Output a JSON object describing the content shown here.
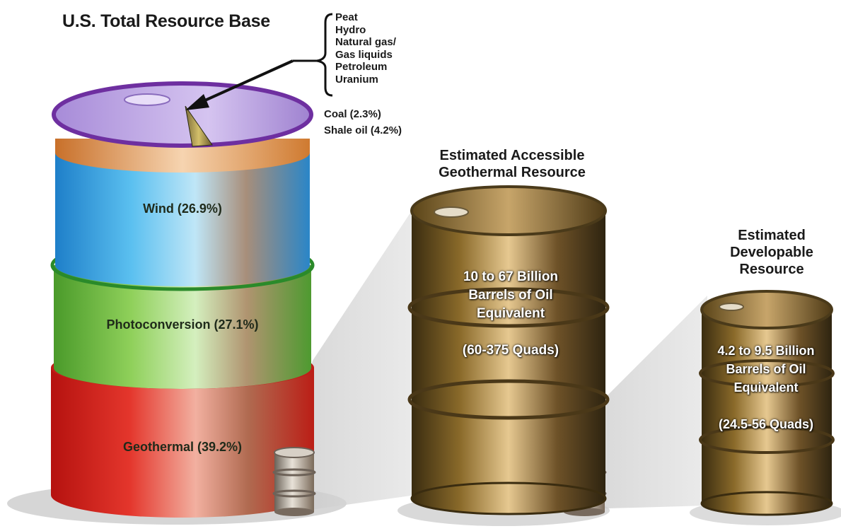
{
  "title": "U.S. Total Resource Base",
  "minor_resources": [
    "Peat",
    "Hydro",
    "Natural gas/",
    "Gas liquids",
    "Petroleum",
    "Uranium"
  ],
  "notes": {
    "coal": "Coal (2.3%)",
    "shale": "Shale oil (4.2%)"
  },
  "total_barrel": {
    "segments": [
      {
        "label": "Wind (26.9%)",
        "color": "#3aa3e0"
      },
      {
        "label": "Photoconversion (27.1%)",
        "color": "#7cc04a"
      },
      {
        "label": "Geothermal (39.2%)",
        "color": "#d42a24"
      }
    ],
    "coal_band_color": "#e08a3a",
    "lid_rim_color": "#7a3fa8",
    "lid_color": "#b99be0"
  },
  "accessible": {
    "heading": [
      "Estimated Accessible",
      "Geothermal Resource"
    ],
    "text": [
      "10 to 67 Billion",
      "Barrels of Oil",
      "Equivalent",
      "",
      "(60-375 Quads)"
    ]
  },
  "developable": {
    "heading": [
      "Estimated",
      "Developable",
      "Resource"
    ],
    "text": [
      "4.2 to 9.5 Billion",
      "Barrels of Oil",
      "Equivalent",
      "",
      "(24.5-56 Quads)"
    ]
  }
}
